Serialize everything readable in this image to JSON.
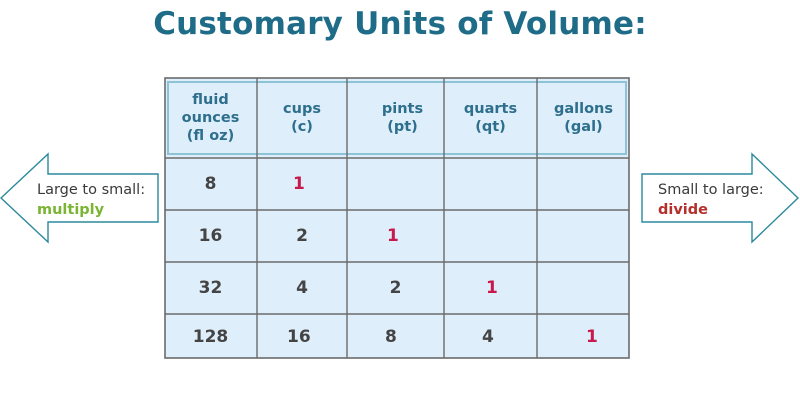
{
  "title": "Customary Units of Volume:",
  "left_arrow": {
    "line1": "Large to small:",
    "keyword": "multiply",
    "keyword_color": "#7ab433"
  },
  "right_arrow": {
    "line1": "Small to large:",
    "keyword": "divide",
    "keyword_color": "#b5302a"
  },
  "colors": {
    "title": "#1e6c88",
    "header_text": "#2e6f8e",
    "unit_one": "#c8184c",
    "cell_bg": "#deeefa",
    "arrow_stroke": "#2a8a9c"
  },
  "table": {
    "headers": [
      [
        "fluid",
        "ounces",
        "(fl oz)"
      ],
      [
        "cups",
        "(c)"
      ],
      [
        "pints",
        "(pt)"
      ],
      [
        "quarts",
        "(qt)"
      ],
      [
        "gallons",
        "(gal)"
      ]
    ],
    "rows": [
      [
        "8",
        "1",
        "",
        "",
        ""
      ],
      [
        "16",
        "2",
        "1",
        "",
        ""
      ],
      [
        "32",
        "4",
        "2",
        "1",
        ""
      ],
      [
        "128",
        "16",
        "8",
        "4",
        "1"
      ]
    ]
  }
}
